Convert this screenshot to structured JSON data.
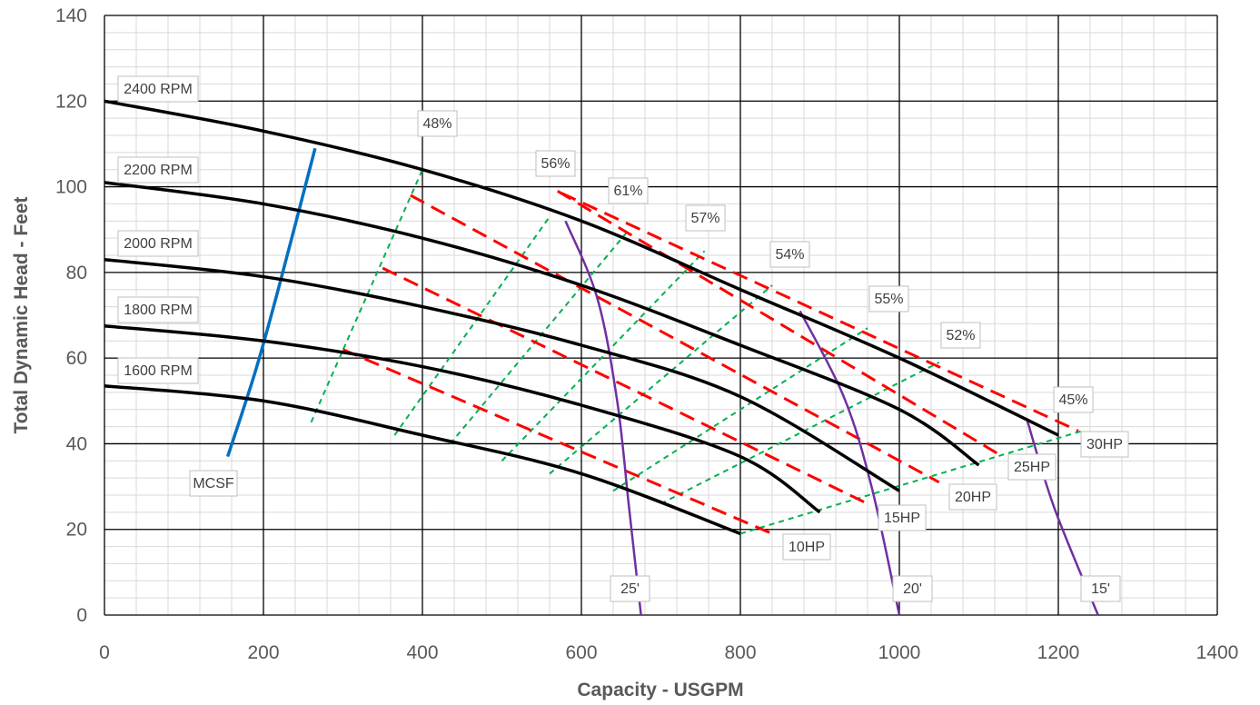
{
  "chart_data": {
    "type": "line",
    "xlabel": "Capacity - USGPM",
    "ylabel": "Total Dynamic Head - Feet",
    "xlim": [
      0,
      1400
    ],
    "ylim": [
      0,
      140
    ],
    "xticks": [
      0,
      200,
      400,
      600,
      800,
      1000,
      1200,
      1400
    ],
    "yticks": [
      0,
      20,
      40,
      60,
      80,
      100,
      120,
      140
    ],
    "grid": true,
    "colors": {
      "speed": "#000000",
      "efficiency": "#00b050",
      "power": "#ff0000",
      "npsh": "#7030a0",
      "mcsf": "#0070c0",
      "major_grid": "#000000",
      "minor_grid": "#d9d9d9"
    },
    "speed_curves": [
      {
        "label": "2400 RPM",
        "points": [
          [
            0,
            120
          ],
          [
            200,
            113
          ],
          [
            400,
            104
          ],
          [
            600,
            92
          ],
          [
            800,
            76
          ],
          [
            1000,
            60
          ],
          [
            1200,
            42
          ]
        ]
      },
      {
        "label": "2200 RPM",
        "points": [
          [
            0,
            101
          ],
          [
            200,
            96
          ],
          [
            400,
            88
          ],
          [
            600,
            77
          ],
          [
            800,
            63
          ],
          [
            1000,
            48
          ],
          [
            1100,
            35
          ]
        ]
      },
      {
        "label": "2000 RPM",
        "points": [
          [
            0,
            83
          ],
          [
            200,
            79
          ],
          [
            400,
            72
          ],
          [
            600,
            63
          ],
          [
            800,
            51
          ],
          [
            1000,
            29
          ]
        ]
      },
      {
        "label": "1800 RPM",
        "points": [
          [
            0,
            67.5
          ],
          [
            200,
            64
          ],
          [
            400,
            58
          ],
          [
            600,
            49
          ],
          [
            800,
            37
          ],
          [
            900,
            24
          ]
        ]
      },
      {
        "label": "1600 RPM",
        "points": [
          [
            0,
            53.5
          ],
          [
            200,
            50
          ],
          [
            400,
            42
          ],
          [
            600,
            33
          ],
          [
            800,
            19
          ]
        ]
      }
    ],
    "efficiency_curves": [
      {
        "label": "48%",
        "points": [
          [
            260,
            45
          ],
          [
            400,
            104
          ]
        ]
      },
      {
        "label": "56%",
        "points": [
          [
            365,
            42
          ],
          [
            560,
            93
          ]
        ]
      },
      {
        "label": "61%",
        "points": [
          [
            435,
            40
          ],
          [
            660,
            90
          ]
        ]
      },
      {
        "label": "57%",
        "points": [
          [
            500,
            36
          ],
          [
            755,
            85
          ]
        ]
      },
      {
        "label": "54%",
        "points": [
          [
            560,
            33
          ],
          [
            840,
            77
          ]
        ]
      },
      {
        "label": "55%",
        "points": [
          [
            640,
            29
          ],
          [
            960,
            67
          ]
        ]
      },
      {
        "label": "52%",
        "points": [
          [
            700,
            26
          ],
          [
            1050,
            59
          ]
        ]
      },
      {
        "label": "45%",
        "points": [
          [
            800,
            19
          ],
          [
            1230,
            43
          ]
        ]
      }
    ],
    "power_curves": [
      {
        "label": "10HP",
        "points": [
          [
            300,
            62
          ],
          [
            840,
            19
          ]
        ]
      },
      {
        "label": "15HP",
        "points": [
          [
            350,
            81
          ],
          [
            960,
            26
          ]
        ]
      },
      {
        "label": "20HP",
        "points": [
          [
            385,
            98
          ],
          [
            1050,
            31
          ]
        ]
      },
      {
        "label": "25HP",
        "points": [
          [
            570,
            99
          ],
          [
            1130,
            37
          ]
        ]
      },
      {
        "label": "30HP",
        "points": [
          [
            575,
            98.5
          ],
          [
            1225,
            43
          ]
        ]
      }
    ],
    "npsh_curves": [
      {
        "label": "25'",
        "points": [
          [
            580,
            92
          ],
          [
            620,
            74
          ],
          [
            645,
            50
          ],
          [
            660,
            25
          ],
          [
            675,
            0
          ]
        ]
      },
      {
        "label": "20'",
        "points": [
          [
            875,
            71
          ],
          [
            930,
            51
          ],
          [
            965,
            30
          ],
          [
            1000,
            0
          ]
        ]
      },
      {
        "label": "15'",
        "points": [
          [
            1160,
            46
          ],
          [
            1195,
            25
          ],
          [
            1250,
            0
          ]
        ]
      }
    ],
    "mcsf_curve": {
      "label": "MCSF",
      "points": [
        [
          155,
          37
        ],
        [
          190,
          57
        ],
        [
          220,
          77
        ],
        [
          265,
          109
        ]
      ]
    }
  }
}
